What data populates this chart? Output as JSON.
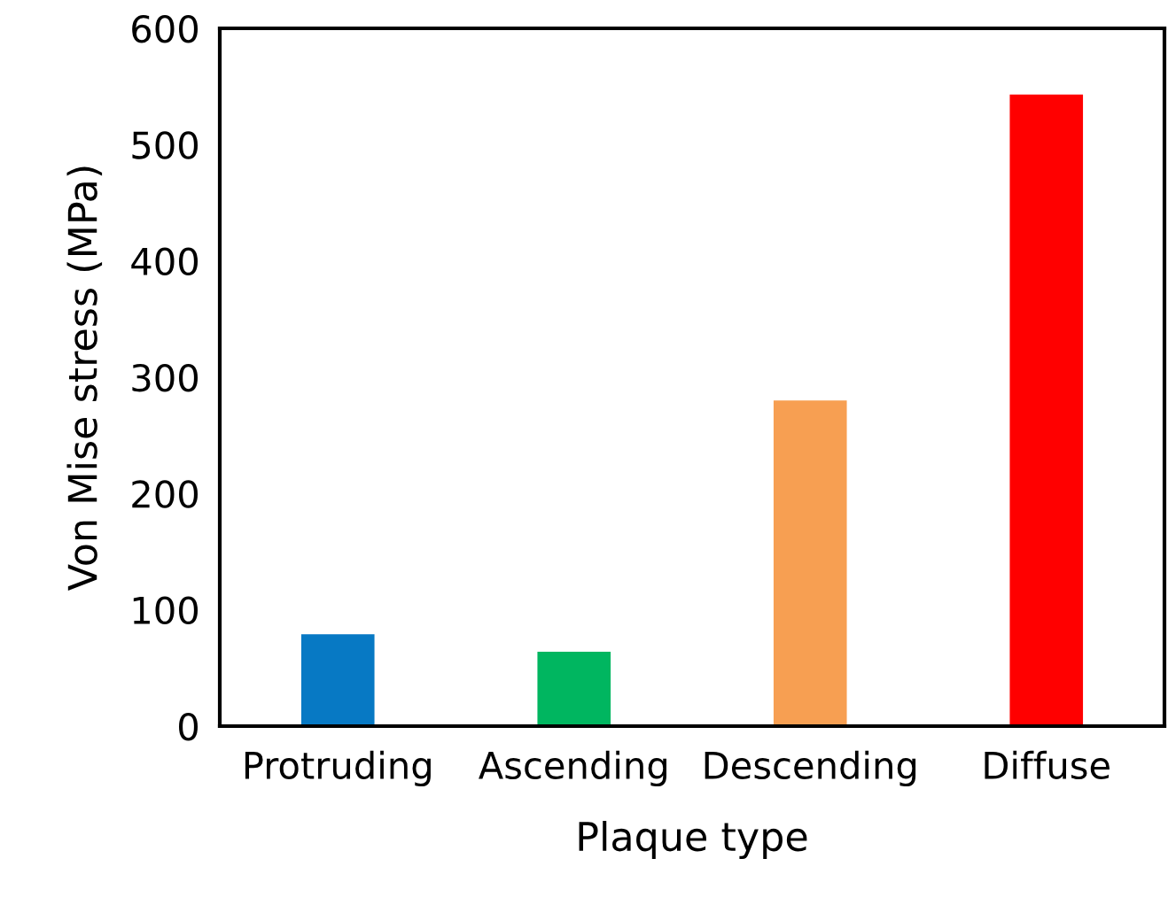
{
  "chart_data": {
    "type": "bar",
    "xlabel": "Plaque type",
    "ylabel": "Von Mise stress (MPa)",
    "categories": [
      "Protruding",
      "Ascending",
      "Descending",
      "Diffuse"
    ],
    "values": [
      79,
      64,
      280,
      543
    ],
    "colors": [
      "#0779c4",
      "#00b660",
      "#f79f52",
      "#ff0000"
    ],
    "ylim": [
      0,
      600
    ],
    "yticks": [
      0,
      100,
      200,
      300,
      400,
      500,
      600
    ],
    "grid": false
  }
}
